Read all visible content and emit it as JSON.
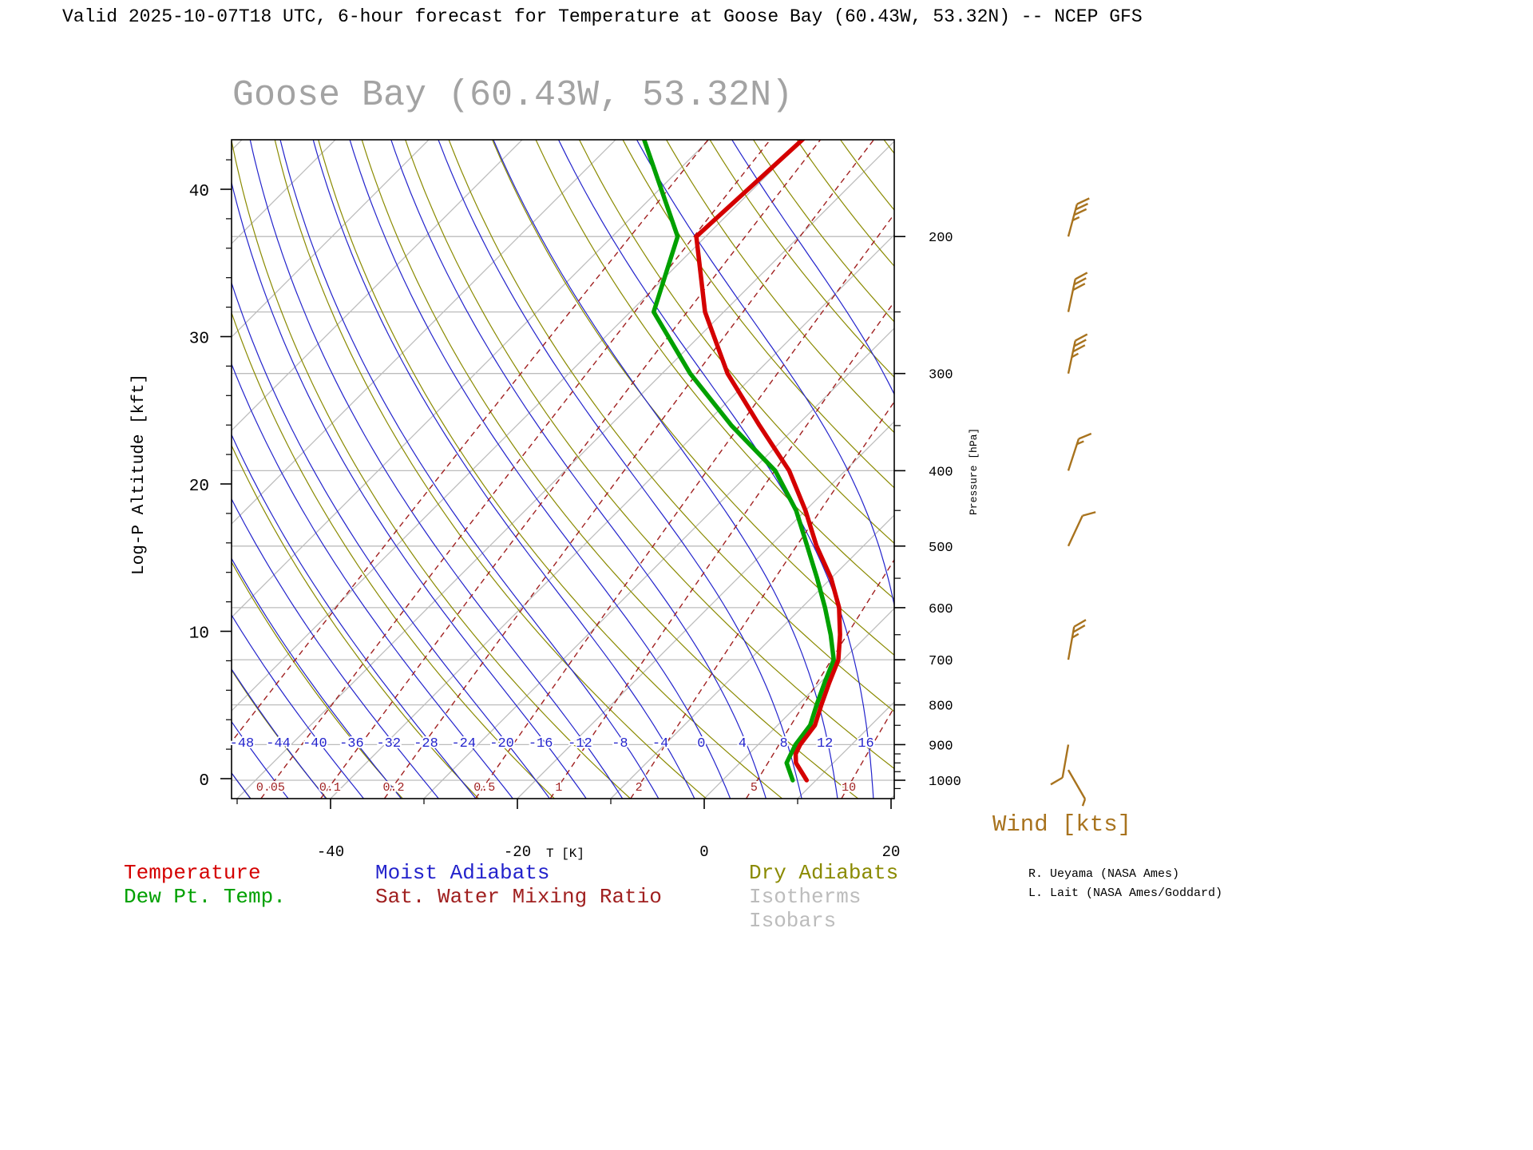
{
  "header": {
    "title": "Valid 2025-10-07T18 UTC, 6-hour forecast for Temperature at Goose Bay (60.43W, 53.32N) -- NCEP GFS"
  },
  "chart": {
    "title": "Goose Bay (60.43W, 53.32N)",
    "x_axis_label": "T [K]",
    "y_axis_label": "Log-P Altitude [kft]",
    "pressure_axis_label": "Pressure [hPa]",
    "wind_label": "Wind [kts]"
  },
  "legend": {
    "temperature": "Temperature",
    "dew_point": "Dew Pt. Temp.",
    "moist_adiabats": "Moist Adiabats",
    "mixing_ratio": "Sat. Water Mixing Ratio",
    "dry_adiabats": "Dry Adiabats",
    "isotherms": "Isotherms",
    "isobars": "Isobars"
  },
  "credits": {
    "line1": "R. Ueyama (NASA Ames)",
    "line2": "L. Lait (NASA Ames/Goddard)"
  },
  "colors": {
    "temperature": "#d40000",
    "dew_point": "#00a000",
    "moist_adiabat": "#2323cc",
    "dry_adiabat": "#8a8a00",
    "mixing_ratio": "#a02020",
    "isotherm": "#bcbcbc",
    "isobar": "#bcbcbc",
    "wind": "#a8731e",
    "title_gray": "#a3a3a3"
  },
  "chart_data": {
    "type": "skewt_log_p_sounding",
    "location": {
      "name": "Goose Bay",
      "lon": "60.43W",
      "lat": "53.32N"
    },
    "valid": "2025-10-07T18 UTC",
    "forecast_hours": 6,
    "model": "NCEP GFS",
    "pressure_axis_ticks_hPa": [
      200,
      300,
      400,
      500,
      600,
      700,
      800,
      900,
      1000
    ],
    "pressure_axis_minor_ticks_hPa": [
      250,
      350,
      450,
      550,
      650,
      750,
      850,
      925,
      950,
      975,
      1025
    ],
    "altitude_axis_ticks_kft": [
      0,
      10,
      20,
      30,
      40
    ],
    "temp_axis_ticks_K": [
      -40,
      -20,
      0,
      20
    ],
    "temp_axis_minor_ticks_K": [
      -50,
      -30,
      -10,
      10
    ],
    "isotherms_C": [
      -120,
      -110,
      -100,
      -90,
      -80,
      -70,
      -60,
      -50,
      -40,
      -30,
      -20,
      -10,
      0,
      10,
      20
    ],
    "isobars_hPa": [
      200,
      250,
      300,
      400,
      500,
      600,
      700,
      800,
      900,
      1000
    ],
    "moist_adiabats_C": [
      -64,
      -60,
      -56,
      -52,
      -48,
      -44,
      -40,
      -36,
      -32,
      -28,
      -24,
      -20,
      -16,
      -12,
      -8,
      -4,
      0,
      4,
      8,
      12,
      16,
      20,
      24
    ],
    "moist_adiabat_labels_C": [
      -48,
      -44,
      -40,
      -36,
      -32,
      -28,
      -24,
      -20,
      -16,
      -12,
      -8,
      -4,
      0,
      4,
      8,
      12,
      16
    ],
    "dry_adiabats_theta_C": [
      -52,
      -44,
      -36,
      -28,
      -20,
      -12,
      -4,
      4,
      12,
      20,
      28,
      36,
      44,
      52,
      60,
      68,
      76,
      84,
      92,
      100,
      108
    ],
    "mixing_ratios_g_kg": [
      0.02,
      0.05,
      0.1,
      0.2,
      0.5,
      1,
      2,
      5,
      10,
      20
    ],
    "mixing_ratio_labels_g_kg": [
      0.05,
      0.1,
      0.2,
      0.5,
      1,
      2,
      5,
      10
    ],
    "temperature_profile": {
      "pressure_hPa": [
        1000,
        950,
        925,
        900,
        850,
        800,
        750,
        700,
        650,
        600,
        550,
        500,
        450,
        400,
        350,
        300,
        250,
        200,
        150
      ],
      "temperature_C": [
        9,
        6,
        5,
        4.5,
        4,
        2.5,
        1,
        -0.5,
        -3,
        -6,
        -10,
        -15,
        -20,
        -26,
        -34,
        -43,
        -52,
        -61,
        -60
      ]
    },
    "dewpoint_profile": {
      "pressure_hPa": [
        1000,
        950,
        925,
        900,
        850,
        800,
        750,
        700,
        650,
        600,
        550,
        500,
        450,
        400,
        350,
        300,
        250,
        200,
        150
      ],
      "dewpoint_C": [
        7.5,
        5,
        4.5,
        4,
        3.5,
        2,
        0.5,
        -1,
        -4,
        -7.5,
        -11.5,
        -16,
        -21,
        -27.5,
        -37,
        -47,
        -57.5,
        -63,
        -77
      ]
    },
    "winds_kts": [
      {
        "pressure_hPa": 200,
        "speed_kts": 35,
        "direction_deg": 15
      },
      {
        "pressure_hPa": 250,
        "speed_kts": 30,
        "direction_deg": 12
      },
      {
        "pressure_hPa": 300,
        "speed_kts": 35,
        "direction_deg": 12
      },
      {
        "pressure_hPa": 400,
        "speed_kts": 15,
        "direction_deg": 18
      },
      {
        "pressure_hPa": 500,
        "speed_kts": 10,
        "direction_deg": 25
      },
      {
        "pressure_hPa": 700,
        "speed_kts": 25,
        "direction_deg": 10
      },
      {
        "pressure_hPa": 900,
        "speed_kts": 10,
        "direction_deg": 190
      },
      {
        "pressure_hPa": 970,
        "speed_kts": 5,
        "direction_deg": 150
      }
    ]
  }
}
